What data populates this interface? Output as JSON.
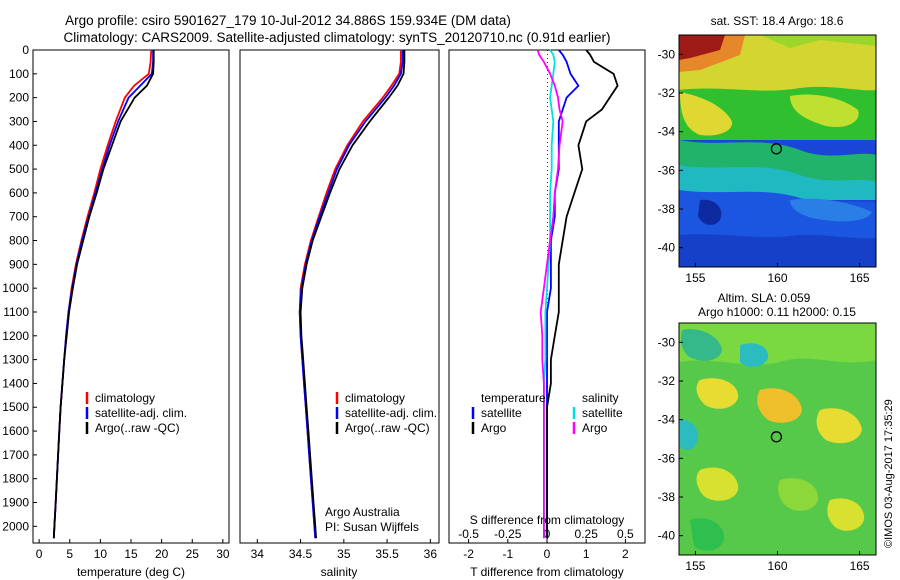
{
  "header": {
    "line1": "Argo profile: csiro 5901627_179 10-Jul-2012 34.886S 159.934E (DM data)",
    "line2": "Climatology: CARS2009. Satellite-adjusted climatology: synTS_20120710.nc (0.91d earlier)"
  },
  "colors": {
    "climatology": "#ff0000",
    "satellite": "#0000ff",
    "argo": "#000000",
    "salinity_sat": "#00e0e0",
    "salinity_argo": "#ff00ff"
  },
  "chart_data": [
    {
      "type": "line",
      "id": "temperature",
      "xlabel": "temperature (deg C)",
      "ylabel": "",
      "xlim": [
        -1,
        31
      ],
      "ylim": [
        2070,
        0
      ],
      "xticks": [
        0,
        5,
        10,
        15,
        20,
        25,
        30
      ],
      "yticks": [
        0,
        100,
        200,
        300,
        400,
        500,
        600,
        700,
        800,
        900,
        1000,
        1100,
        1200,
        1300,
        1400,
        1500,
        1600,
        1700,
        1800,
        1900,
        2000
      ],
      "legend": [
        "climatology",
        "satellite-adj. clim.",
        "Argo(..raw -QC)"
      ],
      "depth": [
        0,
        50,
        100,
        150,
        200,
        300,
        400,
        500,
        600,
        700,
        800,
        900,
        1000,
        1100,
        1200,
        1300,
        1400,
        1500,
        1600,
        1700,
        1800,
        1900,
        2000,
        2050
      ],
      "series": [
        {
          "name": "climatology",
          "values": [
            18.3,
            18.2,
            17.9,
            15.5,
            14.0,
            12.5,
            11.2,
            10.0,
            9.0,
            7.9,
            6.9,
            6.0,
            5.3,
            4.8,
            4.4,
            4.1,
            3.8,
            3.5,
            3.3,
            3.1,
            2.9,
            2.7,
            2.5,
            2.4
          ]
        },
        {
          "name": "satellite-adj. clim.",
          "values": [
            18.6,
            18.6,
            18.4,
            16.5,
            14.6,
            12.9,
            11.5,
            10.3,
            9.2,
            8.1,
            7.0,
            6.1,
            5.4,
            4.8,
            4.4,
            4.1,
            3.8,
            3.5,
            3.3,
            3.1,
            2.9,
            2.7,
            2.5,
            2.4
          ]
        },
        {
          "name": "Argo(..raw -QC)",
          "values": [
            18.7,
            18.7,
            18.6,
            17.6,
            15.6,
            13.3,
            11.9,
            10.5,
            9.4,
            8.2,
            7.2,
            6.2,
            5.5,
            4.9,
            4.5,
            4.1,
            3.8,
            3.5,
            3.3,
            3.1,
            2.9,
            2.7,
            2.5,
            2.4
          ]
        }
      ]
    },
    {
      "type": "line",
      "id": "salinity",
      "xlabel": "salinity",
      "xlim": [
        33.8,
        36.1
      ],
      "ylim": [
        2070,
        0
      ],
      "xticks": [
        34,
        34.5,
        35,
        35.5,
        36
      ],
      "legend": [
        "climatology",
        "satellite-adj. clim.",
        "Argo(..raw -QC)"
      ],
      "annotation": [
        "Argo Australia",
        "PI: Susan Wijffels"
      ],
      "depth": [
        0,
        50,
        100,
        150,
        200,
        300,
        400,
        500,
        600,
        700,
        800,
        900,
        1000,
        1100,
        1200,
        1300,
        1400,
        1500,
        1600,
        1700,
        1800,
        1900,
        2000,
        2050
      ],
      "series": [
        {
          "name": "climatology",
          "values": [
            35.66,
            35.66,
            35.64,
            35.55,
            35.45,
            35.22,
            35.04,
            34.9,
            34.8,
            34.71,
            34.62,
            34.55,
            34.5,
            34.49,
            34.5,
            34.52,
            34.54,
            34.56,
            34.58,
            34.6,
            34.62,
            34.64,
            34.66,
            34.67
          ]
        },
        {
          "name": "satellite-adj. clim.",
          "values": [
            35.68,
            35.68,
            35.66,
            35.58,
            35.48,
            35.25,
            35.06,
            34.92,
            34.82,
            34.72,
            34.63,
            34.56,
            34.51,
            34.49,
            34.5,
            34.52,
            34.54,
            34.56,
            34.58,
            34.6,
            34.62,
            34.64,
            34.66,
            34.67
          ]
        },
        {
          "name": "Argo(..raw -QC)",
          "values": [
            35.7,
            35.7,
            35.69,
            35.62,
            35.52,
            35.3,
            35.1,
            34.95,
            34.84,
            34.74,
            34.64,
            34.57,
            34.52,
            34.5,
            34.51,
            34.53,
            34.55,
            34.57,
            34.59,
            34.61,
            34.63,
            34.65,
            34.67,
            34.68
          ]
        }
      ]
    },
    {
      "type": "line",
      "id": "difference",
      "xlabel": "T difference from climatology",
      "xlabel2": "S difference from climatology",
      "xlim": [
        -2.5,
        2.5
      ],
      "ylim": [
        2070,
        0
      ],
      "xticks_T": [
        -2,
        -1,
        0,
        1,
        2
      ],
      "xticks_S": [
        -0.5,
        -0.25,
        0,
        0.25,
        0.5
      ],
      "legend_T": {
        "title": "temperature",
        "items": [
          "satellite",
          "Argo"
        ]
      },
      "legend_S": {
        "title": "salinity",
        "items": [
          "satellite",
          "Argo"
        ]
      },
      "depth": [
        0,
        20,
        50,
        100,
        150,
        200,
        250,
        300,
        400,
        500,
        600,
        700,
        800,
        900,
        1000,
        1100,
        1200,
        1300,
        1400,
        1500,
        1600,
        1700,
        1800,
        1900,
        2000,
        2050
      ],
      "series": [
        {
          "name": "T satellite",
          "values": [
            0.3,
            0.4,
            0.5,
            0.6,
            0.8,
            0.5,
            0.4,
            0.3,
            0.3,
            0.3,
            0.2,
            0.2,
            0.1,
            0.1,
            0.1,
            0.0,
            0.0,
            0.0,
            0.0,
            0.0,
            0.0,
            0.0,
            0.0,
            0.0,
            0.0,
            0.0
          ]
        },
        {
          "name": "T Argo",
          "values": [
            1.0,
            1.1,
            1.2,
            1.7,
            1.8,
            1.6,
            1.4,
            1.0,
            0.8,
            0.9,
            0.7,
            0.5,
            0.4,
            0.3,
            0.3,
            0.3,
            0.2,
            0.1,
            0.1,
            0.0,
            0.0,
            0.0,
            0.0,
            0.0,
            0.0,
            0.0
          ]
        },
        {
          "name": "S satellite",
          "values": [
            0.02,
            0.04,
            0.05,
            0.04,
            0.03,
            0.02,
            0.03,
            0.04,
            0.03,
            0.03,
            0.02,
            0.02,
            0.02,
            0.01,
            0.0,
            -0.01,
            -0.01,
            -0.01,
            -0.02,
            -0.02,
            -0.02,
            -0.02,
            -0.02,
            -0.02,
            -0.02,
            -0.02
          ]
        },
        {
          "name": "S Argo",
          "values": [
            -0.06,
            -0.05,
            -0.02,
            0.02,
            0.05,
            0.07,
            0.08,
            0.1,
            0.08,
            0.07,
            0.05,
            0.04,
            0.02,
            0.0,
            -0.02,
            -0.04,
            -0.03,
            -0.03,
            -0.02,
            -0.02,
            -0.02,
            -0.02,
            -0.02,
            -0.02,
            -0.02,
            -0.02
          ]
        }
      ]
    },
    {
      "type": "heatmap",
      "id": "sst-map",
      "title": "sat. SST: 18.4 Argo: 18.6",
      "xlim": [
        154,
        166
      ],
      "ylim": [
        -41,
        -29
      ],
      "xticks": [
        155,
        160,
        165
      ],
      "yticks": [
        -30,
        -32,
        -34,
        -36,
        -38,
        -40
      ],
      "marker": {
        "lon": 159.934,
        "lat": -34.886
      }
    },
    {
      "type": "heatmap",
      "id": "sla-map",
      "title": "Altim. SLA: 0.059",
      "title2": "Argo h1000: 0.11 h2000: 0.15",
      "xlim": [
        154,
        166
      ],
      "ylim": [
        -41,
        -29
      ],
      "xticks": [
        155,
        160,
        165
      ],
      "yticks": [
        -30,
        -32,
        -34,
        -36,
        -38,
        -40
      ],
      "marker": {
        "lon": 159.934,
        "lat": -34.886
      }
    }
  ],
  "footer": {
    "credit": "©IMOS 03-Aug-2017 17:35:29"
  }
}
